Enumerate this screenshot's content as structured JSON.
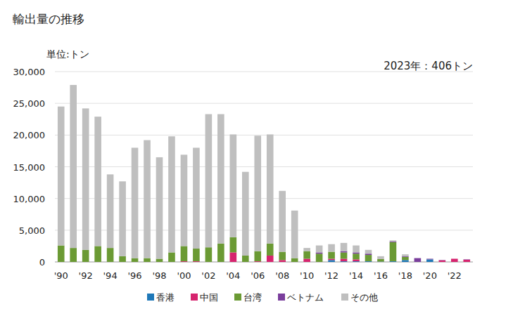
{
  "chart_data": {
    "type": "bar",
    "stacked": true,
    "title": "輸出量の推移",
    "y_label": "単位:トン",
    "annotation": "2023年：406トン",
    "categories": [
      "'90",
      null,
      "'92",
      null,
      "'94",
      null,
      "'96",
      null,
      "'98",
      null,
      "'00",
      null,
      "'02",
      null,
      "'04",
      null,
      "'06",
      null,
      "'08",
      null,
      "'10",
      null,
      "'12",
      null,
      "'14",
      null,
      "'16",
      null,
      "'18",
      null,
      "'20",
      null,
      "'22",
      null
    ],
    "series": [
      {
        "name": "香港",
        "color": "#1f78b8",
        "values": [
          0,
          0,
          0,
          0,
          0,
          0,
          0,
          0,
          0,
          0,
          0,
          0,
          0,
          0,
          0,
          0,
          0,
          0,
          0,
          0,
          0,
          0,
          300,
          100,
          100,
          100,
          50,
          100,
          300,
          0,
          400,
          0,
          0,
          0
        ]
      },
      {
        "name": "中国",
        "color": "#d6246e",
        "values": [
          0,
          0,
          0,
          0,
          0,
          0,
          0,
          0,
          0,
          0,
          100,
          100,
          0,
          0,
          1500,
          0,
          100,
          1000,
          300,
          0,
          500,
          0,
          200,
          400,
          300,
          0,
          0,
          0,
          0,
          0,
          0,
          250,
          500,
          350
        ]
      },
      {
        "name": "台湾",
        "color": "#6b9a34",
        "values": [
          2600,
          2200,
          1900,
          2500,
          2200,
          900,
          600,
          600,
          500,
          1500,
          2400,
          2000,
          2300,
          2900,
          2400,
          1000,
          1600,
          1900,
          1300,
          600,
          1200,
          1300,
          1100,
          1000,
          900,
          1000,
          400,
          3000,
          500,
          0,
          0,
          0,
          0,
          0
        ]
      },
      {
        "name": "ベトナム",
        "color": "#7a3e9c",
        "values": [
          0,
          0,
          0,
          0,
          0,
          0,
          0,
          0,
          0,
          0,
          0,
          0,
          0,
          0,
          0,
          0,
          0,
          0,
          0,
          0,
          0,
          200,
          0,
          200,
          200,
          200,
          0,
          100,
          100,
          600,
          100,
          50,
          0,
          56
        ]
      },
      {
        "name": "その他",
        "color": "#bfbfbf",
        "values": [
          21900,
          25700,
          22300,
          20400,
          11600,
          11800,
          17400,
          18600,
          16000,
          18300,
          14400,
          15900,
          21000,
          20400,
          16200,
          13200,
          18200,
          17200,
          9600,
          7500,
          500,
          1100,
          1200,
          1300,
          1100,
          600,
          450,
          200,
          300,
          0,
          0,
          0,
          0,
          0
        ]
      }
    ],
    "ylim": [
      0,
      30000
    ],
    "yticks": [
      0,
      {
        "value": 5000,
        "label": "5,000"
      },
      {
        "value": 10000,
        "label": "10,000"
      },
      {
        "value": 15000,
        "label": "15,000"
      },
      {
        "value": 20000,
        "label": "20,000"
      },
      {
        "value": 25000,
        "label": "25,000"
      },
      {
        "value": 30000,
        "label": "30,000"
      }
    ],
    "grid": true,
    "legend": "bottom"
  }
}
